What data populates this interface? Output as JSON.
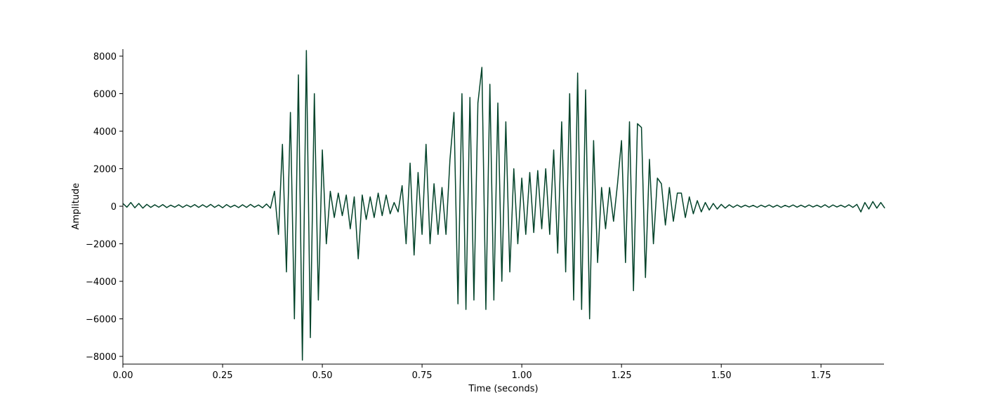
{
  "chart_data": {
    "type": "line",
    "xlabel": "Time (seconds)",
    "ylabel": "Amplitude",
    "color": "#03432a",
    "xlim": [
      0,
      1.908
    ],
    "ylim": [
      -8411,
      8374
    ],
    "xticks": [
      {
        "value": 0,
        "label": "0.00"
      },
      {
        "value": 0.25,
        "label": "0.25"
      },
      {
        "value": 0.5,
        "label": "0.50"
      },
      {
        "value": 0.75,
        "label": "0.75"
      },
      {
        "value": 1,
        "label": "1.00"
      },
      {
        "value": 1.25,
        "label": "1.25"
      },
      {
        "value": 1.5,
        "label": "1.50"
      },
      {
        "value": 1.75,
        "label": "1.75"
      }
    ],
    "yticks": [
      {
        "value": -8000,
        "label": "−8000"
      },
      {
        "value": -6000,
        "label": "−6000"
      },
      {
        "value": -4000,
        "label": "−4000"
      },
      {
        "value": -2000,
        "label": "−2000"
      },
      0,
      2000,
      4000,
      6000,
      8000
    ],
    "x": [
      0,
      0.01,
      0.02,
      0.03,
      0.04,
      0.05,
      0.06,
      0.07,
      0.08,
      0.09,
      0.1,
      0.11,
      0.12,
      0.13,
      0.14,
      0.15,
      0.16,
      0.17,
      0.18,
      0.19,
      0.2,
      0.21,
      0.22,
      0.23,
      0.24,
      0.25,
      0.26,
      0.27,
      0.28,
      0.29,
      0.3,
      0.31,
      0.32,
      0.33,
      0.34,
      0.35,
      0.36,
      0.37,
      0.38,
      0.39,
      0.4,
      0.41,
      0.42,
      0.43,
      0.44,
      0.45,
      0.46,
      0.47,
      0.48,
      0.49,
      0.5,
      0.51,
      0.52,
      0.53,
      0.54,
      0.55,
      0.56,
      0.57,
      0.58,
      0.59,
      0.6,
      0.61,
      0.62,
      0.63,
      0.64,
      0.65,
      0.66,
      0.67,
      0.68,
      0.69,
      0.7,
      0.71,
      0.72,
      0.73,
      0.74,
      0.75,
      0.76,
      0.77,
      0.78,
      0.79,
      0.8,
      0.81,
      0.82,
      0.83,
      0.84,
      0.85,
      0.86,
      0.87,
      0.88,
      0.89,
      0.9,
      0.91,
      0.92,
      0.93,
      0.94,
      0.95,
      0.96,
      0.97,
      0.98,
      0.99,
      1,
      1.01,
      1.02,
      1.03,
      1.04,
      1.05,
      1.06,
      1.07,
      1.08,
      1.09,
      1.1,
      1.11,
      1.12,
      1.13,
      1.14,
      1.15,
      1.16,
      1.17,
      1.18,
      1.19,
      1.2,
      1.21,
      1.22,
      1.23,
      1.24,
      1.25,
      1.26,
      1.27,
      1.28,
      1.29,
      1.3,
      1.31,
      1.32,
      1.33,
      1.34,
      1.35,
      1.36,
      1.37,
      1.38,
      1.39,
      1.4,
      1.41,
      1.42,
      1.43,
      1.44,
      1.45,
      1.46,
      1.47,
      1.48,
      1.49,
      1.5,
      1.51,
      1.52,
      1.53,
      1.54,
      1.55,
      1.56,
      1.57,
      1.58,
      1.59,
      1.6,
      1.61,
      1.62,
      1.63,
      1.64,
      1.65,
      1.66,
      1.67,
      1.68,
      1.69,
      1.7,
      1.71,
      1.72,
      1.73,
      1.74,
      1.75,
      1.76,
      1.77,
      1.78,
      1.79,
      1.8,
      1.81,
      1.82,
      1.83,
      1.84,
      1.85,
      1.86,
      1.87,
      1.88,
      1.89,
      1.9,
      1.91
    ],
    "values": [
      150,
      -50,
      200,
      -80,
      150,
      -100,
      100,
      -60,
      80,
      -50,
      90,
      -70,
      60,
      -50,
      80,
      -60,
      70,
      -40,
      90,
      -60,
      80,
      -50,
      100,
      -60,
      70,
      -80,
      90,
      -50,
      60,
      -70,
      80,
      -60,
      100,
      -50,
      70,
      -80,
      120,
      -100,
      800,
      -1500,
      3300,
      -3500,
      5000,
      -6000,
      7000,
      -8200,
      8300,
      -7000,
      6000,
      -5000,
      3000,
      -2000,
      800,
      -600,
      700,
      -500,
      600,
      -1200,
      500,
      -2800,
      600,
      -700,
      500,
      -600,
      700,
      -500,
      600,
      -400,
      200,
      -300,
      1100,
      -2000,
      2300,
      -2600,
      1800,
      -1500,
      3300,
      -2000,
      1200,
      -1500,
      1000,
      -1500,
      2500,
      5000,
      -5200,
      6000,
      -5500,
      5800,
      -5000,
      5500,
      7400,
      -5500,
      6500,
      -5000,
      5500,
      -4000,
      4500,
      -3500,
      2000,
      -2000,
      1500,
      -1500,
      1800,
      -1400,
      1900,
      -1200,
      2000,
      -1500,
      3000,
      -2500,
      4500,
      -3500,
      6000,
      -5000,
      7100,
      -5500,
      6200,
      -6000,
      3500,
      -3000,
      1000,
      -1200,
      1000,
      -800,
      1200,
      3500,
      -3000,
      4500,
      -4500,
      4400,
      4200,
      -3800,
      2500,
      -2000,
      1500,
      1200,
      -1000,
      1000,
      -800,
      700,
      700,
      -600,
      500,
      -400,
      300,
      -300,
      200,
      -200,
      150,
      -150,
      100,
      -100,
      80,
      -60,
      70,
      -50,
      60,
      -40,
      50,
      -60,
      60,
      -40,
      70,
      -50,
      60,
      -60,
      50,
      -40,
      70,
      -50,
      60,
      -50,
      70,
      -40,
      60,
      -50,
      80,
      -60,
      70,
      -40,
      60,
      -50,
      80,
      -60,
      100,
      -300,
      200,
      -150,
      250,
      -100,
      200,
      -100
    ]
  }
}
